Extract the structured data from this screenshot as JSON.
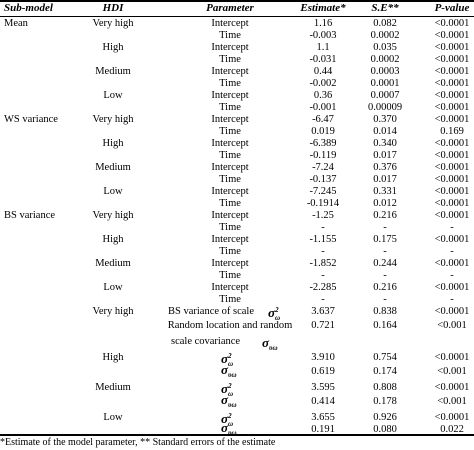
{
  "headers": {
    "submodel": "Sub-model",
    "hdi": "HDI",
    "parameter": "Parameter",
    "estimate": "Estimate*",
    "se": "S.E**",
    "pvalue": "P-value"
  },
  "rows": [
    {
      "submodel": "Mean",
      "hdi": "Very high",
      "param": "Intercept",
      "est": "1.16",
      "se": "0.082",
      "p": "<0.0001"
    },
    {
      "param": "Time",
      "est": "-0.003",
      "se": "0.0002",
      "p": "<0.0001"
    },
    {
      "hdi": "High",
      "param": "Intercept",
      "est": "1.1",
      "se": "0.035",
      "p": "<0.0001"
    },
    {
      "param": "Time",
      "est": "-0.031",
      "se": "0.0002",
      "p": "<0.0001"
    },
    {
      "hdi": "Medium",
      "param": "Intercept",
      "est": "0.44",
      "se": "0.0003",
      "p": "<0.0001"
    },
    {
      "param": "Time",
      "est": "-0.002",
      "se": "0.0001",
      "p": "<0.0001"
    },
    {
      "hdi": "Low",
      "param": "Intercept",
      "est": "0.36",
      "se": "0.0007",
      "p": "<0.0001"
    },
    {
      "param": "Time",
      "est": "-0.001",
      "se": "0.00009",
      "p": "<0.0001"
    },
    {
      "submodel": "WS variance",
      "hdi": "Very high",
      "param": "Intercept",
      "est": "-6.47",
      "se": "0.370",
      "p": "<0.0001"
    },
    {
      "param": "Time",
      "est": "0.019",
      "se": "0.014",
      "p": "0.169"
    },
    {
      "hdi": "High",
      "param": "Intercept",
      "est": "-6.389",
      "se": "0.340",
      "p": "<0.0001"
    },
    {
      "param": "Time",
      "est": "-0.119",
      "se": "0.017",
      "p": "<0.0001"
    },
    {
      "hdi": "Medium",
      "param": "Intercept",
      "est": "-7.24",
      "se": "0.376",
      "p": "<0.0001"
    },
    {
      "param": "Time",
      "est": "-0.137",
      "se": "0.017",
      "p": "<0.0001"
    },
    {
      "hdi": "Low",
      "param": "Intercept",
      "est": "-7.245",
      "se": "0.331",
      "p": "<0.0001"
    },
    {
      "param": "Time",
      "est": "-0.1914",
      "se": "0.012",
      "p": "<0.0001"
    },
    {
      "submodel": "BS variance",
      "hdi": "Very high",
      "param": "Intercept",
      "est": "-1.25",
      "se": "0.216",
      "p": "<0.0001"
    },
    {
      "param": "Time",
      "est": "-",
      "se": "-",
      "p": "-"
    },
    {
      "hdi": "High",
      "param": "Intercept",
      "est": "-1.155",
      "se": "0.175",
      "p": "<0.0001"
    },
    {
      "param": "Time",
      "est": "-",
      "se": "-",
      "p": "-"
    },
    {
      "hdi": "Medium",
      "param": "Intercept",
      "est": "-1.852",
      "se": "0.244",
      "p": "<0.0001"
    },
    {
      "param": "Time",
      "est": "-",
      "se": "-",
      "p": "-"
    },
    {
      "hdi": "Low",
      "param": "Intercept",
      "est": "-2.285",
      "se": "0.216",
      "p": "<0.0001"
    },
    {
      "param": "Time",
      "est": "-",
      "se": "-",
      "p": "-"
    },
    {
      "hdi": "Very high",
      "param": "BS variance of scale",
      "sym": "omega-sq",
      "est": "3.637",
      "se": "0.838",
      "p": "<0.0001"
    },
    {
      "param": "Random location and random",
      "est": "0.721",
      "se": "0.164",
      "p": "<0.001"
    },
    {
      "param": "scale covariance",
      "sym": "upsilon-omega"
    },
    {
      "hdi": "High",
      "sym": "omega-sq",
      "est": "3.910",
      "se": "0.754",
      "p": "<0.0001"
    },
    {
      "sym": "upsilon-omega",
      "est": "0.619",
      "se": "0.174",
      "p": "<0.001"
    },
    {
      "hdi": "Medium",
      "sym": "omega-sq",
      "est": "3.595",
      "se": "0.808",
      "p": "<0.0001"
    },
    {
      "sym": "upsilon-omega",
      "est": "0.414",
      "se": "0.178",
      "p": "<0.001"
    },
    {
      "hdi": "Low",
      "sym": "omega-sq",
      "est": "3.655",
      "se": "0.926",
      "p": "<0.0001"
    },
    {
      "sym": "upsilon-omega",
      "est": "0.191",
      "se": "0.080",
      "p": "0.022"
    }
  ],
  "footnote": "*Estimate of the model parameter, ** Standard errors of the estimate"
}
